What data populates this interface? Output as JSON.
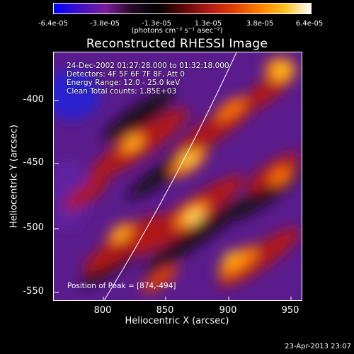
{
  "colorbar": {
    "ticks": [
      "-6.4e-05",
      "-3.8e-05",
      "-1.3e-05",
      "1.3e-05",
      "3.8e-05",
      "6.4e-05"
    ],
    "unit": "(photons cm⁻² s⁻¹ asec⁻²)",
    "colors": [
      "#0000ff",
      "#4010c8",
      "#7a1f9a",
      "#2a0a2a",
      "#000000",
      "#5a0808",
      "#b01818",
      "#e04000",
      "#ff8000",
      "#ffc020",
      "#ffffff"
    ]
  },
  "title": "Reconstructed RHESSI Image",
  "info": {
    "time": "24-Dec-2002 01:27:28.000 to 01:32:18.000",
    "detectors": "Detectors: 4F 5F 6F 7F 8F, Att 0",
    "energy": "Energy Range: 12.0 - 25.0 keV",
    "clean": "Clean     Total counts: 1.85E+03"
  },
  "peak": "Position of Peak = [874,-494]",
  "axes": {
    "xlabel": "Heliocentric X (arcsec)",
    "ylabel": "Heliocentric Y (arcsec)",
    "xticks": [
      "800",
      "850",
      "900",
      "950"
    ],
    "yticks": [
      "-400",
      "-450",
      "-500",
      "-550"
    ]
  },
  "timestamp": "23-Apr-2013 23:07"
}
